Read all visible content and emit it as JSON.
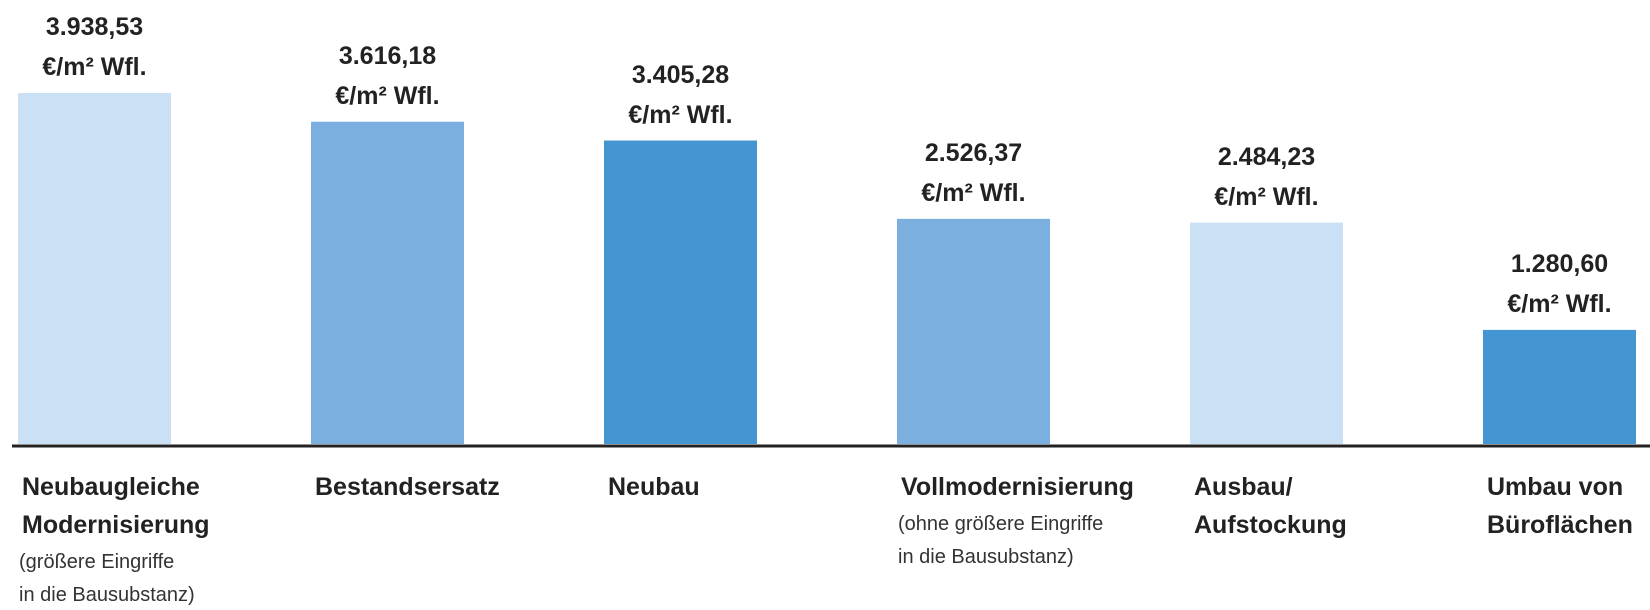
{
  "chart_data": {
    "type": "bar",
    "categories": [
      [
        "Neubaugleiche",
        "Modernisierung"
      ],
      [
        "Bestandsersatz"
      ],
      [
        "Neubau"
      ],
      [
        "Vollmodernisierung"
      ],
      [
        "Ausbau/",
        "Aufstockung"
      ],
      [
        "Umbau von",
        "Büroflächen"
      ]
    ],
    "category_notes": [
      [
        "(größere Eingriffe",
        "in die Bausubstanz)"
      ],
      null,
      null,
      [
        "(ohne größere Eingriffe",
        "in die Bausubstanz)"
      ],
      null,
      null
    ],
    "values": [
      3938.53,
      3616.18,
      3405.28,
      2526.37,
      2484.23,
      1280.6
    ],
    "value_labels": [
      "3.938,53",
      "3.616,18",
      "3.405,28",
      "2.526,37",
      "2.484,23",
      "1.280,60"
    ],
    "value_unit": "€/m² Wfl.",
    "colors": [
      "#c9e0f5",
      "#7bafdf",
      "#4496d3",
      "#7bafdf",
      "#c9e0f5",
      "#4496d3"
    ]
  }
}
